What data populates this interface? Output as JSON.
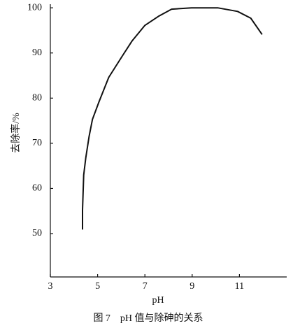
{
  "chart_data": {
    "type": "line",
    "x_label": "pH",
    "y_label": "去除率/%",
    "caption": "图 7　pH 值与除砷的关系",
    "x": [
      4.36,
      4.36,
      4.41,
      4.5,
      4.64,
      4.78,
      5.06,
      5.47,
      6.03,
      6.45,
      7.0,
      7.57,
      8.13,
      8.97,
      10.08,
      10.92,
      11.48,
      11.96
    ],
    "series": [
      {
        "name": "去除率",
        "color": "#111111",
        "values": [
          50.9,
          55.2,
          63.0,
          66.8,
          71.5,
          75.3,
          79.2,
          84.6,
          89.2,
          92.6,
          96.1,
          98.1,
          99.7,
          100,
          100,
          99.2,
          97.7,
          94.1
        ]
      }
    ],
    "xlim": [
      3,
      13
    ],
    "xticks": [
      3,
      5,
      7,
      9,
      11
    ],
    "ylim": [
      40.4,
      100.8
    ],
    "yticks": [
      50,
      60,
      70,
      80,
      90,
      100
    ],
    "grid": false
  }
}
